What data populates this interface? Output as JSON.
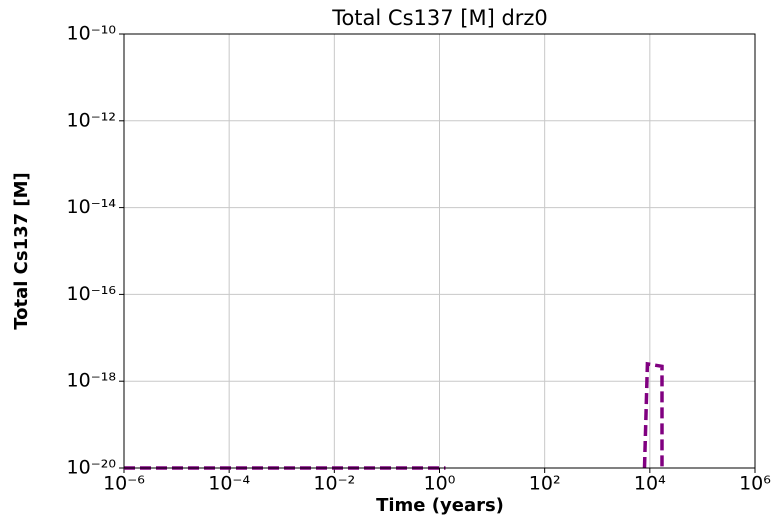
{
  "chart_data": {
    "type": "line",
    "title": "Total Cs137 [M] drz0",
    "x_label": "Time (years)",
    "y_label": "Total Cs137 [M]",
    "x": [
      1e-06,
      1.3,
      100,
      7900,
      9000,
      17000,
      17000
    ],
    "series": [
      {
        "name": "Total Cs137",
        "color": "#800080",
        "values": [
          1e-20,
          1e-20,
          null,
          1e-20,
          2.5e-18,
          2.2e-18,
          1e-20
        ]
      }
    ],
    "xlog": true,
    "ylog": true,
    "grid": true,
    "xlim": [
      1e-06,
      1000000
    ],
    "ylim": [
      1e-20,
      1e-10
    ],
    "xticks": [
      {
        "value": 1e-06,
        "label": "10⁻⁶"
      },
      {
        "value": 0.0001,
        "label": "10⁻⁴"
      },
      {
        "value": 0.01,
        "label": "10⁻²"
      },
      {
        "value": 1,
        "label": "10⁰"
      },
      {
        "value": 100,
        "label": "10²"
      },
      {
        "value": 10000,
        "label": "10⁴"
      },
      {
        "value": 1000000,
        "label": "10⁶"
      }
    ],
    "yticks": [
      {
        "value": 1e-20,
        "label": "10⁻²⁰"
      },
      {
        "value": 1e-18,
        "label": "10⁻¹⁸"
      },
      {
        "value": 1e-16,
        "label": "10⁻¹⁶"
      },
      {
        "value": 1e-14,
        "label": "10⁻¹⁴"
      },
      {
        "value": 1e-12,
        "label": "10⁻¹²"
      },
      {
        "value": 1e-10,
        "label": "10⁻¹⁰"
      }
    ]
  }
}
